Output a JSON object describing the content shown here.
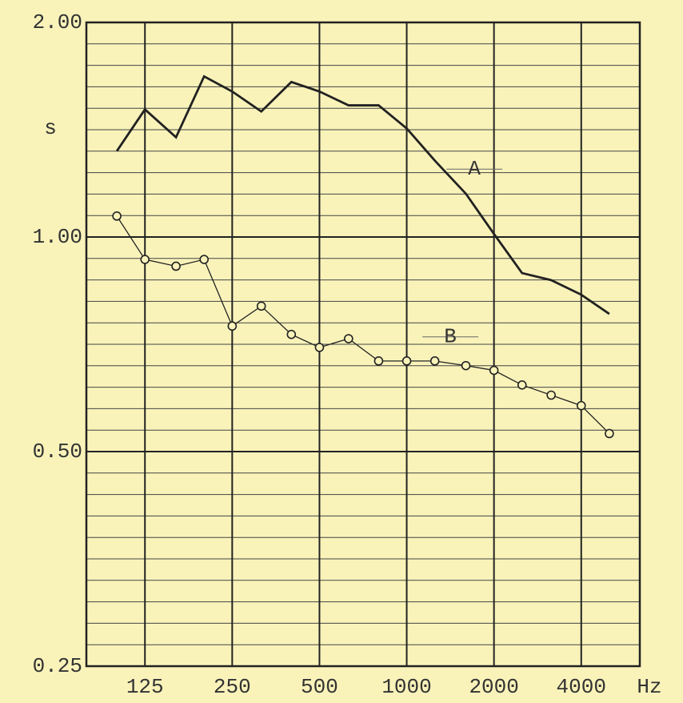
{
  "chart_data": {
    "type": "line",
    "x_scale": "log",
    "y_scale": "log",
    "x": [
      100,
      125,
      160,
      200,
      250,
      315,
      400,
      500,
      630,
      800,
      1000,
      1250,
      1600,
      2000,
      2500,
      3150,
      4000,
      5000
    ],
    "series": [
      {
        "name": "A",
        "color": "#222222",
        "marker": "none",
        "values": [
          1.32,
          1.51,
          1.38,
          1.68,
          1.6,
          1.5,
          1.65,
          1.6,
          1.53,
          1.53,
          1.42,
          1.28,
          1.15,
          1.01,
          0.89,
          0.87,
          0.83,
          0.78
        ]
      },
      {
        "name": "B",
        "color": "#222222",
        "marker": "circle",
        "values": [
          1.07,
          0.93,
          0.91,
          0.93,
          0.75,
          0.8,
          0.73,
          0.7,
          0.72,
          0.67,
          0.67,
          0.67,
          0.66,
          0.65,
          0.62,
          0.6,
          0.58,
          0.53
        ]
      }
    ],
    "xlim": [
      78.5,
      6370
    ],
    "xticks": [
      125,
      250,
      500,
      1000,
      2000,
      4000
    ],
    "x_unit": "Hz",
    "ylim": [
      0.25,
      2.0
    ],
    "yticks": [
      {
        "value": 0.25,
        "label": "0.25"
      },
      {
        "value": 0.5,
        "label": "0.50"
      },
      {
        "value": 1.0,
        "label": "1.00"
      },
      {
        "value": 2.0,
        "label": "2.00"
      }
    ],
    "y_unit": "s",
    "grid": true
  }
}
